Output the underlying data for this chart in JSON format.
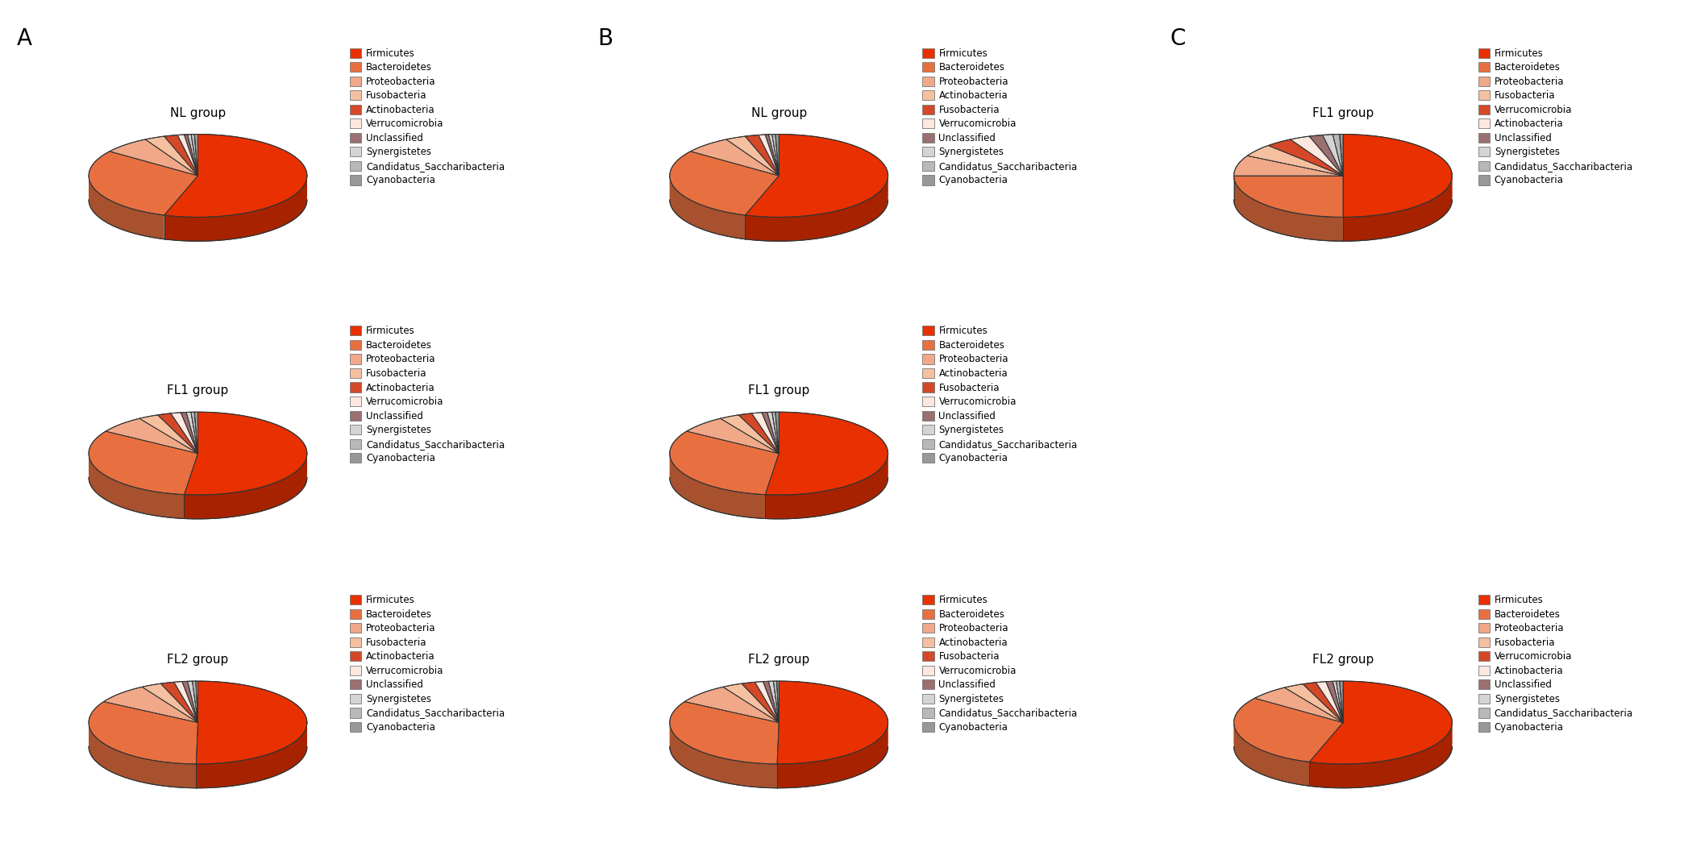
{
  "labels_A": [
    "Firmicutes",
    "Bacteroidetes",
    "Proteobacteria",
    "Fusobacteria",
    "Actinobacteria",
    "Verrucomicrobia",
    "Unclassified",
    "Synergistetes",
    "Candidatus_Saccharibacteria",
    "Cyanobacteria"
  ],
  "labels_B": [
    "Firmicutes",
    "Bacteroidetes",
    "Proteobacteria",
    "Actinobacteria",
    "Fusobacteria",
    "Verrucomicrobia",
    "Unclassified",
    "Synergistetes",
    "Candidatus_Saccharibacteria",
    "Cyanobacteria"
  ],
  "labels_C": [
    "Firmicutes",
    "Bacteroidetes",
    "Proteobacteria",
    "Fusobacteria",
    "Verrucomicrobia",
    "Actinobacteria",
    "Unclassified",
    "Synergistetes",
    "Candidatus_Saccharibacteria",
    "Cyanobacteria"
  ],
  "colors": [
    "#E83000",
    "#E87040",
    "#F0A888",
    "#F4C0A0",
    "#D44828",
    "#FDE8E0",
    "#9B7070",
    "#D4D4D4",
    "#B8B8B8",
    "#989898"
  ],
  "panel_A_groups": [
    {
      "title": "NL group",
      "values": [
        55,
        30,
        7,
        3,
        2,
        1,
        0.5,
        0.5,
        0.5,
        0.5
      ]
    },
    {
      "title": "FL1 group",
      "values": [
        52,
        32,
        7,
        3,
        2,
        1.5,
        0.8,
        0.7,
        0.5,
        0.5
      ]
    },
    {
      "title": "FL2 group",
      "values": [
        50,
        33,
        8,
        3,
        2,
        1.2,
        0.8,
        0.7,
        0.5,
        0.3
      ]
    }
  ],
  "panel_B_groups": [
    {
      "title": "NL group",
      "values": [
        55,
        30,
        7,
        3,
        2,
        1,
        0.5,
        0.5,
        0.5,
        0.5
      ]
    },
    {
      "title": "FL1 group",
      "values": [
        52,
        32,
        7,
        3,
        2,
        1.5,
        0.8,
        0.7,
        0.5,
        0.5
      ]
    },
    {
      "title": "FL2 group",
      "values": [
        50,
        33,
        8,
        3,
        2,
        1.2,
        0.8,
        0.7,
        0.5,
        0.3
      ]
    }
  ],
  "panel_C_groups": [
    {
      "title": "FL1 group",
      "values": [
        50,
        25,
        8,
        5,
        4,
        3,
        2,
        1.5,
        1,
        0.5
      ]
    },
    {
      "title": "FL2 group",
      "values": [
        55,
        30,
        6,
        3,
        2,
        1.5,
        1,
        0.5,
        0.5,
        0.5
      ]
    }
  ],
  "startangle": 90,
  "panel_label_fontsize": 20,
  "title_fontsize": 11,
  "legend_fontsize": 8.5,
  "background_color": "#FFFFFF"
}
